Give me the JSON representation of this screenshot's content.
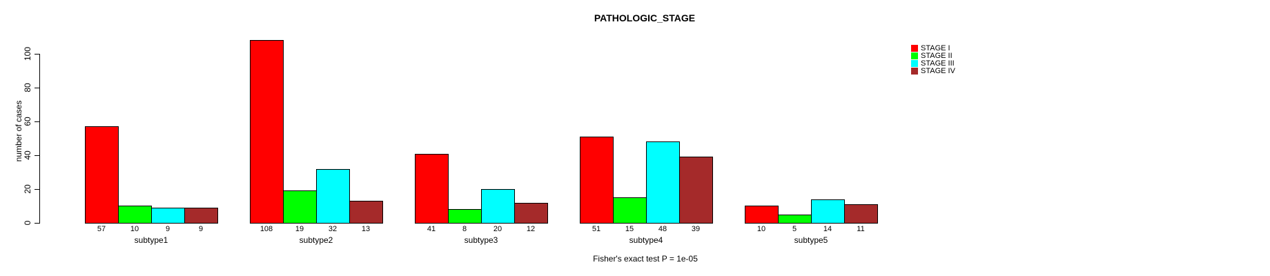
{
  "chart_data": {
    "type": "bar",
    "title": "PATHOLOGIC_STAGE",
    "ylabel": "number of cases",
    "xlabel": "",
    "footer": "Fisher's exact test P = 1e-05",
    "categories": [
      "subtype1",
      "subtype2",
      "subtype3",
      "subtype4",
      "subtype5"
    ],
    "series": [
      {
        "name": "STAGE I",
        "color": "#FF0000",
        "values": [
          57,
          108,
          41,
          51,
          10
        ]
      },
      {
        "name": "STAGE II",
        "color": "#00FF00",
        "values": [
          10,
          19,
          8,
          15,
          5
        ]
      },
      {
        "name": "STAGE III",
        "color": "#00FFFF",
        "values": [
          9,
          32,
          20,
          48,
          14
        ]
      },
      {
        "name": "STAGE IV",
        "color": "#A52A2A",
        "values": [
          9,
          13,
          12,
          39,
          11
        ]
      }
    ],
    "yticks": [
      0,
      20,
      40,
      60,
      80,
      100
    ],
    "ylim": [
      0,
      110
    ],
    "bar_value_labels_shown": true,
    "grid": false,
    "legend_position": "top-right",
    "background_color": "#FFFFFF",
    "axis_color": "#000000"
  }
}
